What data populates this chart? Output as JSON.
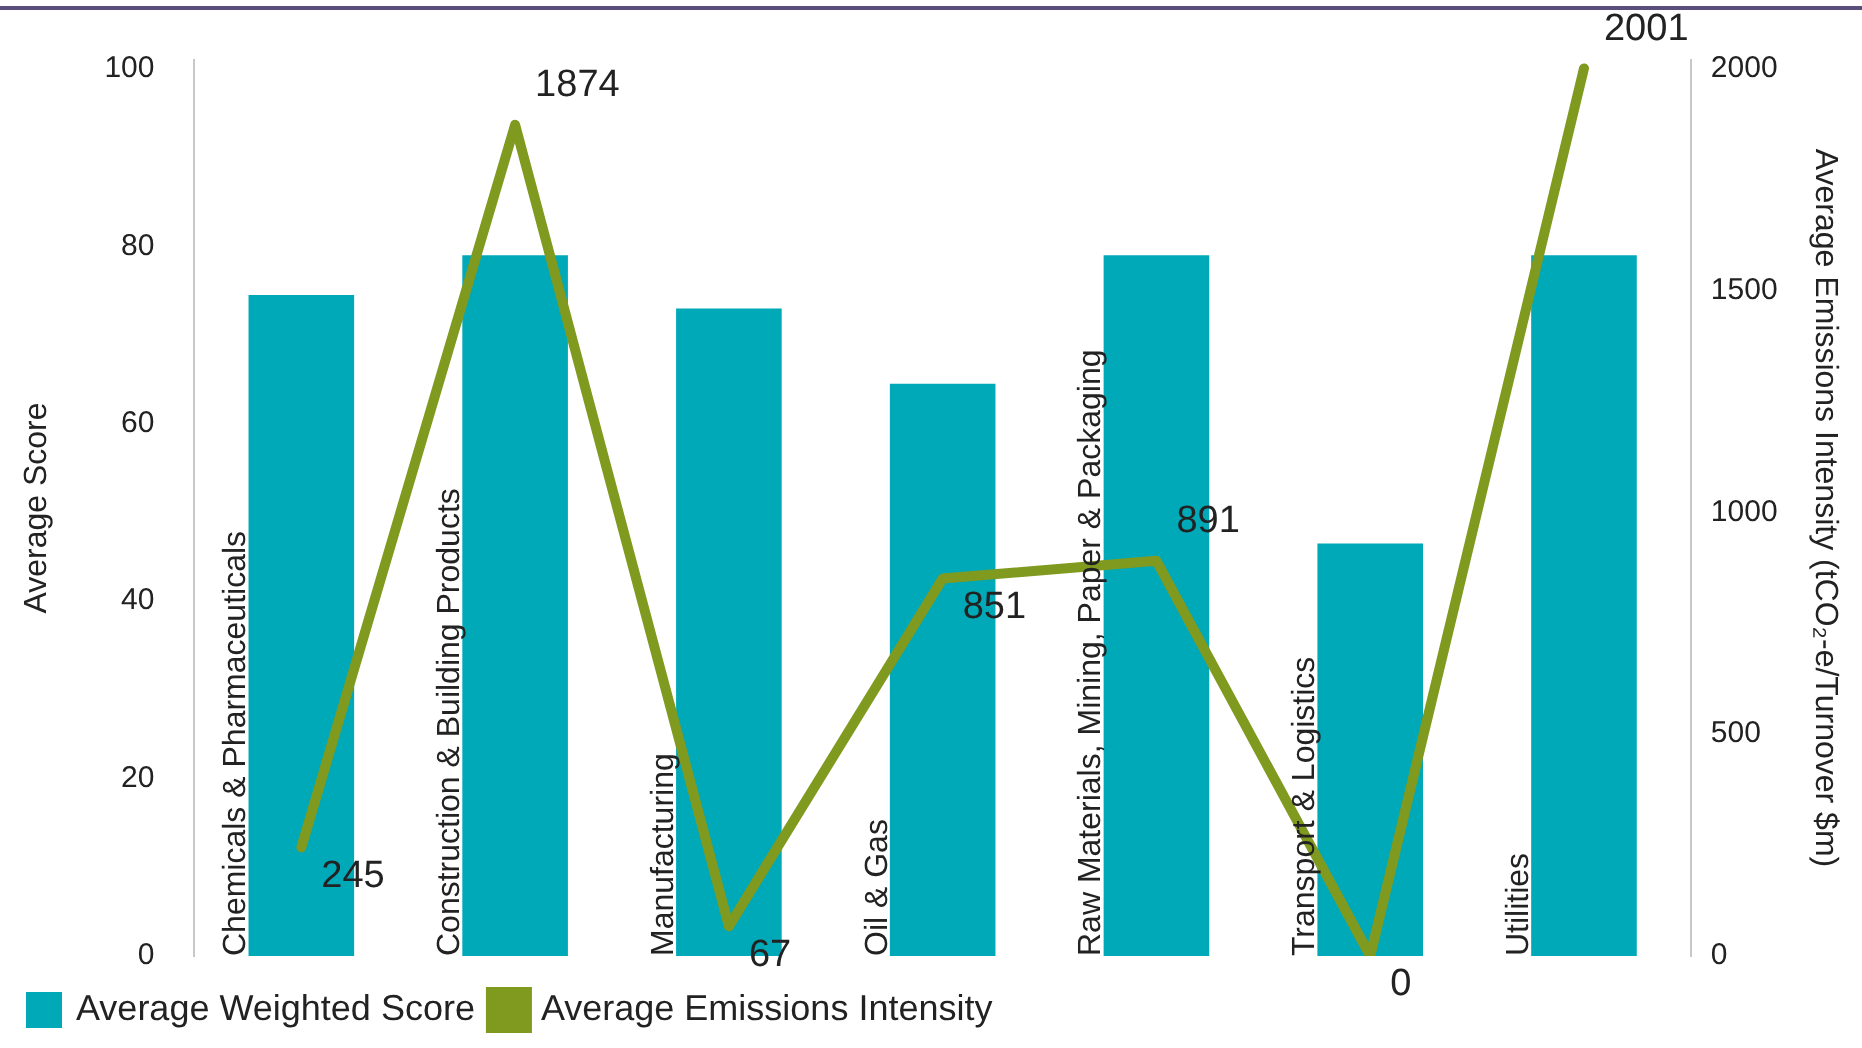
{
  "chart_data": {
    "type": "bar",
    "ylabel": "Average Score",
    "y2label": "Average Emissions Intensity (tCO₂-e/Turnover $m)",
    "categories": [
      "Chemicals & Pharmaceuticals",
      "Construction & Building Products",
      "Manufacturing",
      "Oil & Gas",
      "Raw Materials, Mining, Paper & Packaging",
      "Transport & Logistics",
      "Utilities"
    ],
    "series": [
      {
        "name": "Average Weighted Score",
        "color": "#00a9b8",
        "values": [
          74.5,
          79,
          73,
          64.5,
          79,
          46.5,
          79
        ]
      },
      {
        "name": "Average Emissions Intensity",
        "type": "line",
        "axis": "y2",
        "color": "#7f9a1f",
        "values": [
          245,
          1874,
          67,
          851,
          891,
          0,
          2001
        ],
        "value_labels": [
          "245",
          "1874",
          "67",
          "851",
          "891",
          "0",
          "2001"
        ]
      }
    ],
    "ylim": [
      0,
      101
    ],
    "yticks": [
      0,
      20,
      40,
      60,
      80,
      100
    ],
    "y2lim": [
      0,
      2020
    ],
    "y2ticks": [
      0,
      500,
      1000,
      1500,
      2000
    ],
    "grid": false,
    "legend": "bottom",
    "marker": "none",
    "line_style": "solid"
  }
}
